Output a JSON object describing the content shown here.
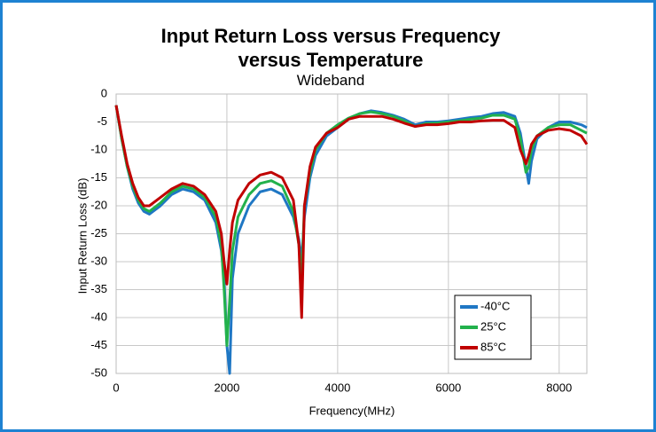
{
  "chart_data": {
    "type": "line",
    "title": "Input Return Loss versus Frequency versus Temperature",
    "subtitle": "Wideband",
    "x_label": "Frequency(MHz)",
    "y_label": "Input Return Loss (dB)",
    "x": [
      0,
      100,
      200,
      300,
      400,
      500,
      600,
      800,
      1000,
      1200,
      1400,
      1600,
      1800,
      1900,
      1950,
      2000,
      2050,
      2100,
      2200,
      2400,
      2600,
      2800,
      3000,
      3200,
      3300,
      3350,
      3400,
      3500,
      3600,
      3800,
      4000,
      4200,
      4400,
      4600,
      4800,
      5000,
      5200,
      5400,
      5600,
      5800,
      6000,
      6200,
      6400,
      6600,
      6800,
      7000,
      7200,
      7300,
      7400,
      7450,
      7500,
      7600,
      7800,
      8000,
      8200,
      8400,
      8500
    ],
    "series": [
      {
        "name": "-40°C",
        "color": "#1f77c4",
        "values": [
          -2,
          -8,
          -13,
          -17,
          -19.5,
          -21,
          -21.5,
          -20,
          -18,
          -17,
          -17.5,
          -19,
          -23,
          -28,
          -33,
          -45,
          -50,
          -33,
          -25,
          -20,
          -17.5,
          -17,
          -18,
          -22,
          -26,
          -30,
          -22,
          -15,
          -11,
          -7.5,
          -6,
          -4.5,
          -3.5,
          -3,
          -3.3,
          -3.8,
          -4.5,
          -5.5,
          -5,
          -5,
          -4.8,
          -4.5,
          -4.2,
          -4,
          -3.5,
          -3.3,
          -4,
          -7,
          -13,
          -16,
          -12,
          -8,
          -6,
          -5,
          -5,
          -5.5,
          -6
        ]
      },
      {
        "name": "25°C",
        "color": "#22b14c",
        "values": [
          -2,
          -8,
          -13,
          -16.5,
          -19,
          -20.5,
          -21,
          -19.5,
          -17.5,
          -16.5,
          -17,
          -18.5,
          -22,
          -27,
          -35,
          -45,
          -37,
          -28,
          -22,
          -18,
          -16,
          -15.5,
          -16.5,
          -21,
          -27,
          -33,
          -20,
          -14,
          -10,
          -7,
          -5.5,
          -4.3,
          -3.5,
          -3.2,
          -3.5,
          -4,
          -4.8,
          -5.8,
          -5.3,
          -5.2,
          -5,
          -4.8,
          -4.5,
          -4.3,
          -3.8,
          -3.8,
          -4.5,
          -8,
          -14,
          -13,
          -10,
          -7.5,
          -6,
          -5.5,
          -5.5,
          -6.5,
          -7
        ]
      },
      {
        "name": "85°C",
        "color": "#c00000",
        "values": [
          -2,
          -7.5,
          -12.5,
          -16,
          -18.5,
          -20,
          -20,
          -18.5,
          -17,
          -16,
          -16.5,
          -18,
          -21,
          -25,
          -30,
          -34,
          -28,
          -23,
          -19,
          -16,
          -14.5,
          -14,
          -15,
          -19,
          -27,
          -40,
          -20,
          -13,
          -9.5,
          -7,
          -6,
          -4.5,
          -4,
          -4,
          -4,
          -4.5,
          -5.2,
          -5.8,
          -5.5,
          -5.5,
          -5.3,
          -5,
          -5,
          -4.8,
          -4.7,
          -4.7,
          -6,
          -10,
          -12.5,
          -11,
          -9,
          -7.5,
          -6.5,
          -6.2,
          -6.5,
          -7.5,
          -9
        ]
      }
    ],
    "xlim": [
      0,
      8500
    ],
    "xticks": [
      0,
      2000,
      4000,
      6000,
      8000
    ],
    "ylim": [
      -50,
      0
    ],
    "yticks": [
      0,
      -5,
      -10,
      -15,
      -20,
      -25,
      -30,
      -35,
      -40,
      -45,
      -50
    ],
    "grid": true,
    "legend": "lower right"
  }
}
